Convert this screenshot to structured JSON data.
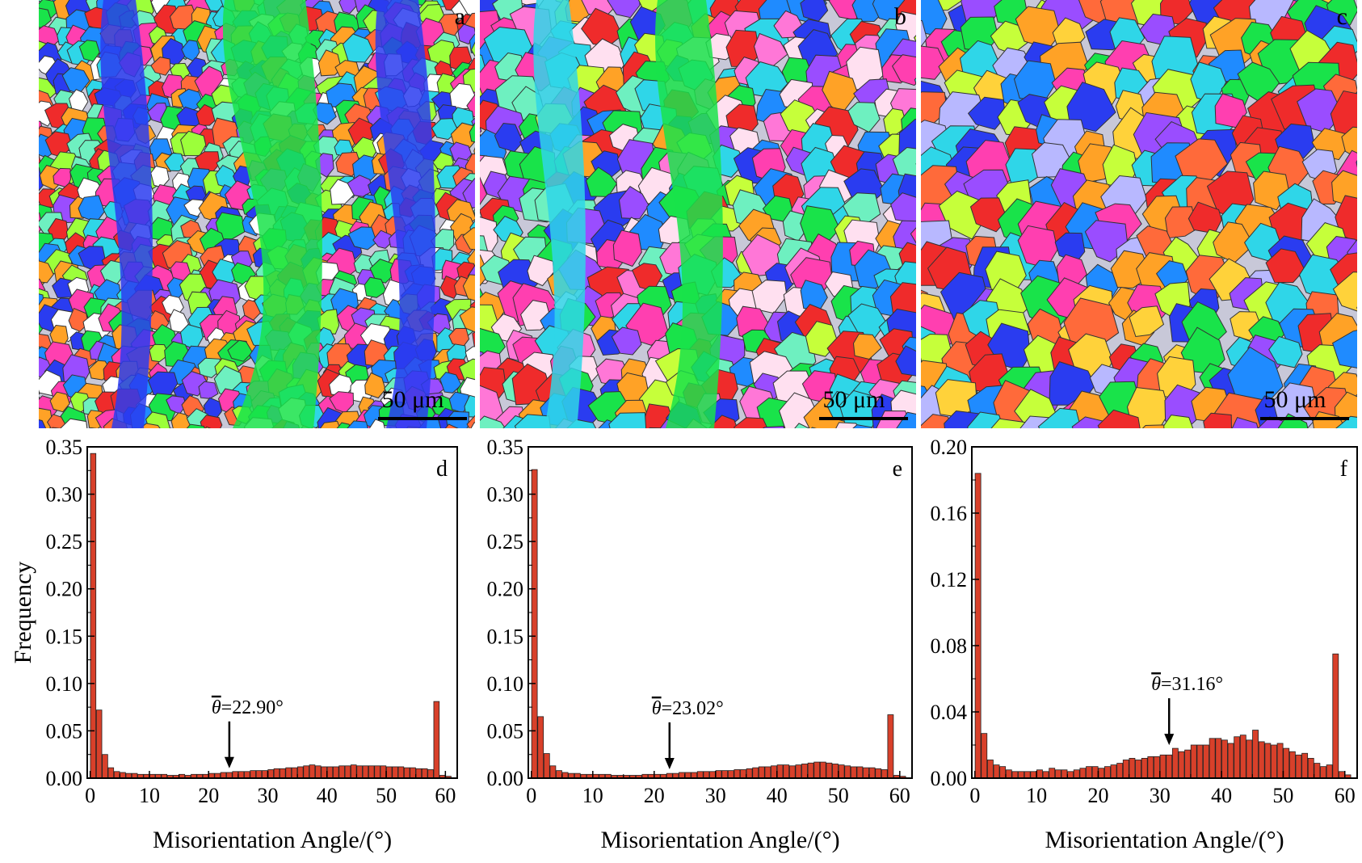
{
  "maps": [
    {
      "letter": "a",
      "scalebar": "50 μm",
      "palette": [
        "#2a3cf0",
        "#19e34a",
        "#ef2b2b",
        "#ff3fb0",
        "#2fd6e8",
        "#9a4dff",
        "#ffa226",
        "#9cff3a",
        "#ffffff",
        "#1f8bff",
        "#ff6a3a",
        "#6ef0c0"
      ]
    },
    {
      "letter": "b",
      "scalebar": "50 μm",
      "palette": [
        "#ef2b2b",
        "#19e34a",
        "#2a3cf0",
        "#ff3fb0",
        "#2fd6e8",
        "#9a4dff",
        "#ffa226",
        "#c6ff3a",
        "#ffe0f0",
        "#1f8bff",
        "#6ef0c0",
        "#ff77d7"
      ]
    },
    {
      "letter": "c",
      "scalebar": "50 μm",
      "palette": [
        "#ef2b2b",
        "#ff3fb0",
        "#2a3cf0",
        "#19e34a",
        "#2fd6e8",
        "#9a4dff",
        "#ffa226",
        "#c6ff3a",
        "#b8b8ff",
        "#1f8bff",
        "#ff6a3a",
        "#ffd23a"
      ]
    }
  ],
  "bar_color": "#d8402a",
  "chart_data": [
    {
      "type": "bar",
      "panel": "d",
      "xlabel": "Misorientation Angle/(°)",
      "ylabel": "Frequency",
      "xlim": [
        -0.5,
        62
      ],
      "ylim": [
        0,
        0.35
      ],
      "xticks": [
        0,
        10,
        20,
        30,
        40,
        50,
        60
      ],
      "yticks": [
        "0.00",
        "0.05",
        "0.10",
        "0.15",
        "0.20",
        "0.25",
        "0.30",
        "0.35"
      ],
      "x": [
        1,
        2,
        3,
        4,
        5,
        6,
        7,
        8,
        9,
        10,
        11,
        12,
        13,
        14,
        15,
        16,
        17,
        18,
        19,
        20,
        21,
        22,
        23,
        24,
        25,
        26,
        27,
        28,
        29,
        30,
        31,
        32,
        33,
        34,
        35,
        36,
        37,
        38,
        39,
        40,
        41,
        42,
        43,
        44,
        45,
        46,
        47,
        48,
        49,
        50,
        51,
        52,
        53,
        54,
        55,
        56,
        57,
        58,
        59,
        60,
        61
      ],
      "values": [
        0.343,
        0.072,
        0.025,
        0.011,
        0.007,
        0.006,
        0.005,
        0.005,
        0.004,
        0.004,
        0.004,
        0.004,
        0.004,
        0.003,
        0.003,
        0.004,
        0.003,
        0.004,
        0.004,
        0.004,
        0.005,
        0.005,
        0.006,
        0.006,
        0.007,
        0.007,
        0.007,
        0.008,
        0.008,
        0.008,
        0.009,
        0.01,
        0.01,
        0.011,
        0.011,
        0.012,
        0.013,
        0.014,
        0.013,
        0.012,
        0.012,
        0.012,
        0.013,
        0.013,
        0.014,
        0.013,
        0.013,
        0.013,
        0.013,
        0.013,
        0.012,
        0.012,
        0.012,
        0.011,
        0.011,
        0.01,
        0.01,
        0.009,
        0.081,
        0.003,
        0.002
      ],
      "mean_label": "=22.90°",
      "mean_symbol": "θ",
      "mean_x": 23.5
    },
    {
      "type": "bar",
      "panel": "e",
      "xlabel": "Misorientation Angle/(°)",
      "ylabel": "",
      "xlim": [
        -0.5,
        62
      ],
      "ylim": [
        0,
        0.35
      ],
      "xticks": [
        0,
        10,
        20,
        30,
        40,
        50,
        60
      ],
      "yticks": [
        "0.00",
        "0.05",
        "0.10",
        "0.15",
        "0.20",
        "0.25",
        "0.30",
        "0.35"
      ],
      "x": [
        1,
        2,
        3,
        4,
        5,
        6,
        7,
        8,
        9,
        10,
        11,
        12,
        13,
        14,
        15,
        16,
        17,
        18,
        19,
        20,
        21,
        22,
        23,
        24,
        25,
        26,
        27,
        28,
        29,
        30,
        31,
        32,
        33,
        34,
        35,
        36,
        37,
        38,
        39,
        40,
        41,
        42,
        43,
        44,
        45,
        46,
        47,
        48,
        49,
        50,
        51,
        52,
        53,
        54,
        55,
        56,
        57,
        58,
        59,
        60,
        61
      ],
      "values": [
        0.326,
        0.065,
        0.026,
        0.013,
        0.008,
        0.006,
        0.005,
        0.005,
        0.004,
        0.004,
        0.004,
        0.004,
        0.004,
        0.003,
        0.003,
        0.003,
        0.003,
        0.003,
        0.004,
        0.004,
        0.004,
        0.004,
        0.005,
        0.005,
        0.006,
        0.006,
        0.006,
        0.007,
        0.007,
        0.007,
        0.008,
        0.008,
        0.008,
        0.009,
        0.009,
        0.01,
        0.011,
        0.012,
        0.012,
        0.013,
        0.014,
        0.014,
        0.013,
        0.014,
        0.015,
        0.016,
        0.017,
        0.017,
        0.016,
        0.015,
        0.014,
        0.013,
        0.012,
        0.012,
        0.011,
        0.011,
        0.01,
        0.009,
        0.067,
        0.003,
        0.002
      ],
      "mean_label": "=23.02°",
      "mean_symbol": "θ",
      "mean_x": 22.5
    },
    {
      "type": "bar",
      "panel": "f",
      "xlabel": "Misorientation Angle/(°)",
      "ylabel": "",
      "xlim": [
        -0.5,
        62
      ],
      "ylim": [
        0,
        0.2
      ],
      "xticks": [
        0,
        10,
        20,
        30,
        40,
        50,
        60
      ],
      "yticks": [
        "0.00",
        "0.04",
        "0.08",
        "0.12",
        "0.16",
        "0.20"
      ],
      "x": [
        1,
        2,
        3,
        4,
        5,
        6,
        7,
        8,
        9,
        10,
        11,
        12,
        13,
        14,
        15,
        16,
        17,
        18,
        19,
        20,
        21,
        22,
        23,
        24,
        25,
        26,
        27,
        28,
        29,
        30,
        31,
        32,
        33,
        34,
        35,
        36,
        37,
        38,
        39,
        40,
        41,
        42,
        43,
        44,
        45,
        46,
        47,
        48,
        49,
        50,
        51,
        52,
        53,
        54,
        55,
        56,
        57,
        58,
        59,
        60,
        61
      ],
      "values": [
        0.184,
        0.027,
        0.011,
        0.008,
        0.007,
        0.005,
        0.004,
        0.004,
        0.004,
        0.004,
        0.005,
        0.004,
        0.006,
        0.005,
        0.005,
        0.004,
        0.005,
        0.006,
        0.007,
        0.007,
        0.006,
        0.007,
        0.008,
        0.009,
        0.011,
        0.012,
        0.011,
        0.012,
        0.013,
        0.013,
        0.014,
        0.014,
        0.018,
        0.016,
        0.017,
        0.02,
        0.02,
        0.02,
        0.024,
        0.024,
        0.023,
        0.021,
        0.025,
        0.026,
        0.023,
        0.029,
        0.022,
        0.021,
        0.02,
        0.021,
        0.018,
        0.016,
        0.014,
        0.015,
        0.012,
        0.009,
        0.007,
        0.008,
        0.075,
        0.004,
        0.002
      ],
      "mean_label": "=31.16°",
      "mean_symbol": "θ",
      "mean_x": 31.5
    }
  ]
}
